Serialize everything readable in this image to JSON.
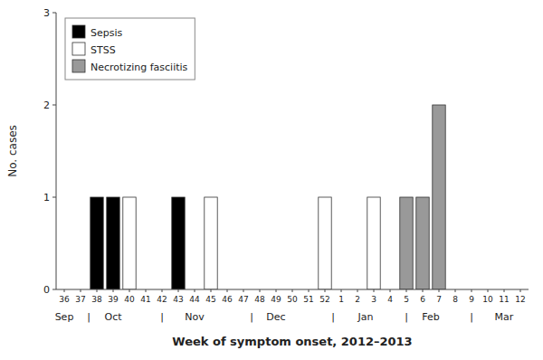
{
  "chart_data": {
    "type": "bar",
    "stacked": true,
    "categories": [
      "36",
      "37",
      "38",
      "39",
      "40",
      "41",
      "42",
      "43",
      "44",
      "45",
      "46",
      "47",
      "48",
      "49",
      "50",
      "51",
      "52",
      "1",
      "2",
      "3",
      "4",
      "5",
      "6",
      "7",
      "8",
      "9",
      "10",
      "11",
      "12"
    ],
    "series": [
      {
        "name": "Sepsis",
        "color": "#000000",
        "values": [
          0,
          0,
          1,
          1,
          0,
          0,
          0,
          1,
          0,
          0,
          0,
          0,
          0,
          0,
          0,
          0,
          0,
          0,
          0,
          0,
          0,
          0,
          0,
          0,
          0,
          0,
          0,
          0,
          0
        ]
      },
      {
        "name": "STSS",
        "color": "#ffffff",
        "values": [
          0,
          0,
          0,
          0,
          1,
          0,
          0,
          0,
          0,
          1,
          0,
          0,
          0,
          0,
          0,
          0,
          1,
          0,
          0,
          1,
          0,
          0,
          0,
          0,
          0,
          0,
          0,
          0,
          0
        ]
      },
      {
        "name": "Necrotizing fasciitis",
        "color": "#999999",
        "values": [
          0,
          0,
          0,
          0,
          0,
          0,
          0,
          0,
          0,
          0,
          0,
          0,
          0,
          0,
          0,
          0,
          0,
          0,
          0,
          0,
          0,
          1,
          1,
          2,
          0,
          0,
          0,
          0,
          0
        ]
      }
    ],
    "ylabel": "No. cases",
    "xlabel": "Week of symptom onset, 2012–2013",
    "ylim": [
      0,
      3
    ],
    "yticks": [
      0,
      1,
      2,
      3
    ],
    "grid": false,
    "legend": "upper left",
    "annotations": [
      {
        "text": "Sep",
        "x": 0
      },
      {
        "text": "Oct",
        "x": 3.0
      },
      {
        "text": "Nov",
        "x": 8.0
      },
      {
        "text": "Dec",
        "x": 13.0
      },
      {
        "text": "Jan",
        "x": 18.5
      },
      {
        "text": "Feb",
        "x": 22.5
      },
      {
        "text": "Mar",
        "x": 27.0
      },
      {
        "text": "|",
        "x": 1.5
      },
      {
        "text": "|",
        "x": 6.0
      },
      {
        "text": "|",
        "x": 11.5
      },
      {
        "text": "|",
        "x": 16.5
      },
      {
        "text": "|",
        "x": 21.0
      },
      {
        "text": "|",
        "x": 25.0
      }
    ]
  }
}
